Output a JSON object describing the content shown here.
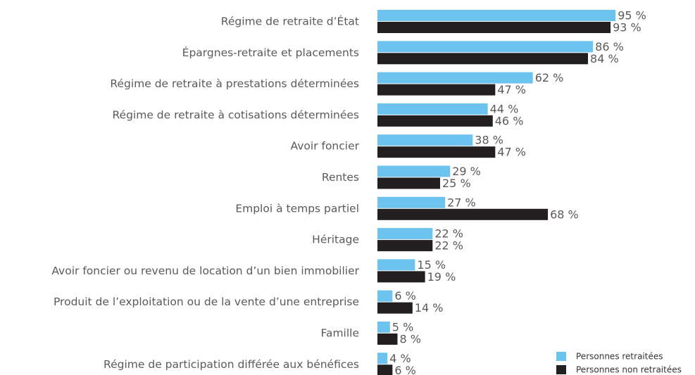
{
  "chart_data": {
    "type": "barh",
    "categories": [
      "Régime de retraite d’État",
      "Épargnes-retraite et placements",
      "Régime de retraite à prestations déterminées",
      "Régime de retraite à cotisations déterminées",
      "Avoir foncier",
      "Rentes",
      "Emploi à temps partiel",
      "Héritage",
      "Avoir foncier ou revenu de location d’un bien immobilier",
      "Produit de l’exploitation ou de la vente d’une entreprise",
      "Famille",
      "Régime de participation différée aux bénéfices"
    ],
    "series": [
      {
        "name": "Personnes retraitées",
        "color": "#6cc4ee",
        "values": [
          95,
          86,
          62,
          44,
          38,
          29,
          27,
          22,
          15,
          6,
          5,
          4
        ],
        "value_labels": [
          "95 %",
          "86 %",
          "62 %",
          "44 %",
          "38 %",
          "29 %",
          "27 %",
          "22 %",
          "15 %",
          "6 %",
          "5 %",
          "4 %"
        ]
      },
      {
        "name": "Personnes non retraitées",
        "color": "#231f20",
        "values": [
          93,
          84,
          47,
          46,
          47,
          25,
          68,
          22,
          19,
          14,
          8,
          6
        ],
        "value_labels": [
          "93 %",
          "84 %",
          "47 %",
          "46 %",
          "47 %",
          "25 %",
          "68 %",
          "22 %",
          "19 %",
          "14 %",
          "8 %",
          "6 %"
        ]
      }
    ],
    "xlim": [
      0,
      100
    ],
    "legend": "bottom-right"
  }
}
